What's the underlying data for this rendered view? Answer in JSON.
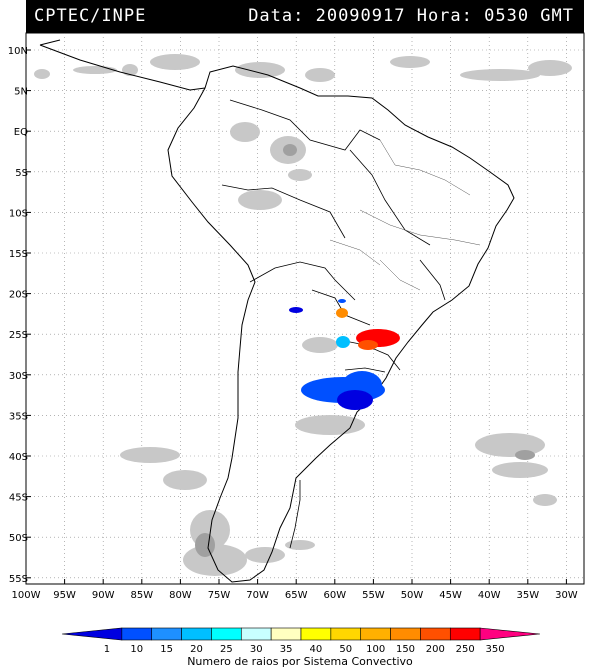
{
  "header": {
    "brand": "CPTEC/INPE",
    "timestamp": "Data: 20090917 Hora: 0530 GMT",
    "background": "#000000",
    "text_color": "#ffffff"
  },
  "map": {
    "lat_labels": [
      "10N",
      "5N",
      "EQ",
      "5S",
      "10S",
      "15S",
      "20S",
      "25S",
      "30S",
      "35S",
      "40S",
      "45S",
      "50S",
      "55S"
    ],
    "lon_labels": [
      "100W",
      "95W",
      "90W",
      "85W",
      "80W",
      "75W",
      "70W",
      "65W",
      "60W",
      "55W",
      "50W",
      "45W",
      "40W",
      "35W",
      "30W"
    ],
    "grid": "dotted",
    "cloud_color": "#c8c8c8",
    "coast_color": "#000000"
  },
  "legend": {
    "ticks": [
      "1",
      "10",
      "15",
      "20",
      "25",
      "30",
      "35",
      "40",
      "50",
      "100",
      "150",
      "200",
      "250",
      "350"
    ],
    "colors": [
      "#0000e0",
      "#0050ff",
      "#1e90ff",
      "#00bfff",
      "#00ffff",
      "#c8ffff",
      "#ffffc0",
      "#ffff00",
      "#ffd700",
      "#ffb000",
      "#ff8c00",
      "#ff5000",
      "#ff0000",
      "#ff0080"
    ],
    "title": "Numero de raios por Sistema Convectivo"
  }
}
